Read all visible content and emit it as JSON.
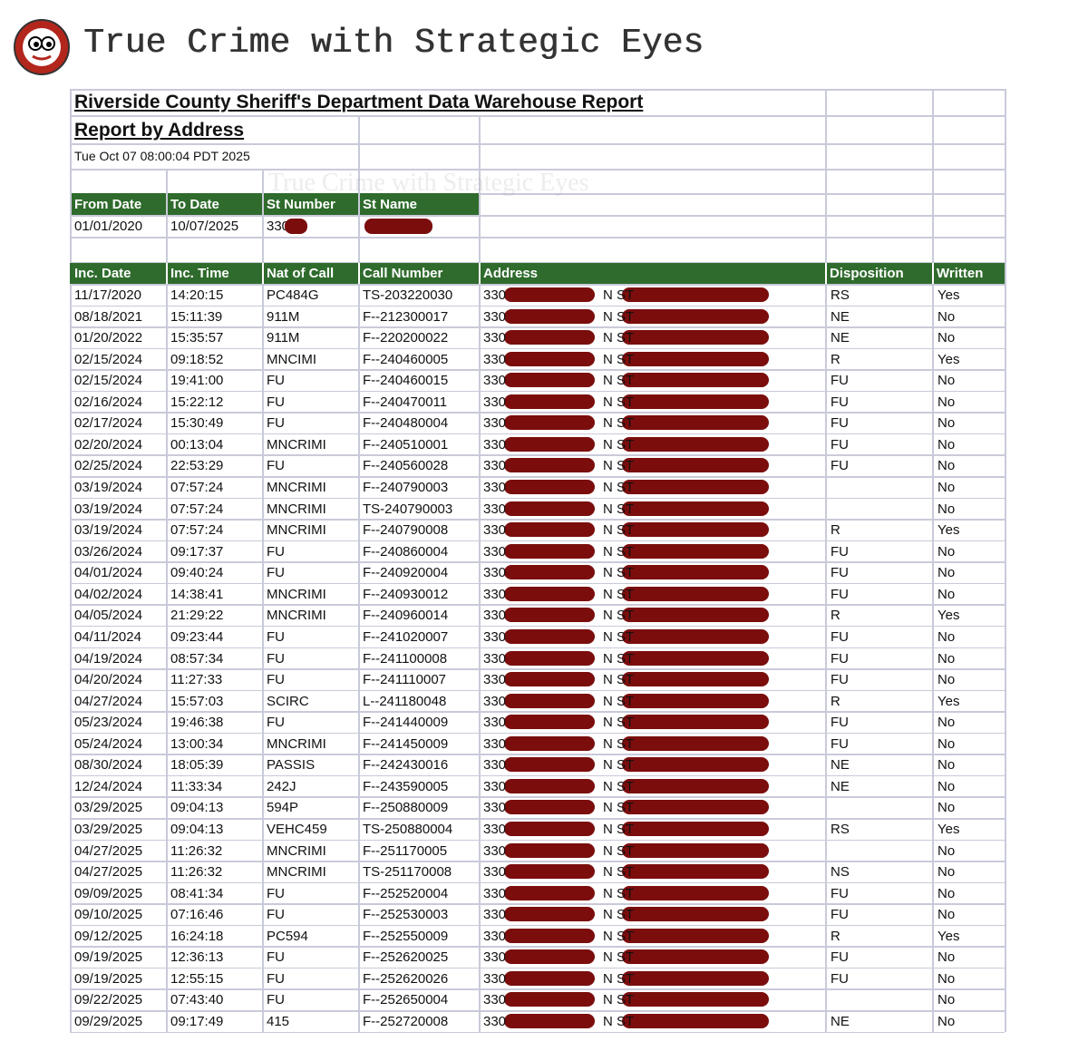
{
  "header": {
    "title": "True Crime with Strategic Eyes"
  },
  "report": {
    "title": "Riverside County Sheriff's Department Data Warehouse Report",
    "subtitle": "Report by Address",
    "generated": "Tue Oct 07 08:00:04 PDT 2025",
    "filter_headers": [
      "From Date",
      "To Date",
      "St Number",
      "St Name"
    ],
    "filter_values": [
      "01/01/2020",
      "10/07/2025",
      "330"
    ],
    "columns": [
      "Inc. Date",
      "Inc. Time",
      "Nat of Call",
      "Call Number",
      "Address",
      "Disposition",
      "Written"
    ],
    "rows": [
      [
        "11/17/2020",
        "14:20:15",
        "PC484G",
        "TS-203220030",
        "330",
        "N ST",
        "RS",
        "Yes"
      ],
      [
        "08/18/2021",
        "15:11:39",
        "911M",
        "F--212300017",
        "330",
        "N ST",
        "NE",
        "No"
      ],
      [
        "01/20/2022",
        "15:35:57",
        "911M",
        "F--220200022",
        "330",
        "N ST",
        "NE",
        "No"
      ],
      [
        "02/15/2024",
        "09:18:52",
        "MNCIMI",
        "F--240460005",
        "330",
        "N ST",
        "R",
        "Yes"
      ],
      [
        "02/15/2024",
        "19:41:00",
        "FU",
        "F--240460015",
        "330",
        "N ST",
        "FU",
        "No"
      ],
      [
        "02/16/2024",
        "15:22:12",
        "FU",
        "F--240470011",
        "330",
        "N ST",
        "FU",
        "No"
      ],
      [
        "02/17/2024",
        "15:30:49",
        "FU",
        "F--240480004",
        "330",
        "N ST",
        "FU",
        "No"
      ],
      [
        "02/20/2024",
        "00:13:04",
        "MNCRIMI",
        "F--240510001",
        "330",
        "N ST",
        "FU",
        "No"
      ],
      [
        "02/25/2024",
        "22:53:29",
        "FU",
        "F--240560028",
        "330",
        "N ST",
        "FU",
        "No"
      ],
      [
        "03/19/2024",
        "07:57:24",
        "MNCRIMI",
        "F--240790003",
        "330",
        "N ST",
        null,
        "No"
      ],
      [
        "03/19/2024",
        "07:57:24",
        "MNCRIMI",
        "TS-240790003",
        "330",
        "N ST",
        null,
        "No"
      ],
      [
        "03/19/2024",
        "07:57:24",
        "MNCRIMI",
        "F--240790008",
        "330",
        "N ST",
        "R",
        "Yes"
      ],
      [
        "03/26/2024",
        "09:17:37",
        "FU",
        "F--240860004",
        "330",
        "N ST",
        "FU",
        "No"
      ],
      [
        "04/01/2024",
        "09:40:24",
        "FU",
        "F--240920004",
        "330",
        "N ST",
        "FU",
        "No"
      ],
      [
        "04/02/2024",
        "14:38:41",
        "MNCRIMI",
        "F--240930012",
        "330",
        "N ST",
        "FU",
        "No"
      ],
      [
        "04/05/2024",
        "21:29:22",
        "MNCRIMI",
        "F--240960014",
        "330",
        "N ST",
        "R",
        "Yes"
      ],
      [
        "04/11/2024",
        "09:23:44",
        "FU",
        "F--241020007",
        "330",
        "N ST",
        "FU",
        "No"
      ],
      [
        "04/19/2024",
        "08:57:34",
        "FU",
        "F--241100008",
        "330",
        "N ST",
        "FU",
        "No"
      ],
      [
        "04/20/2024",
        "11:27:33",
        "FU",
        "F--241110007",
        "330",
        "N ST",
        "FU",
        "No"
      ],
      [
        "04/27/2024",
        "15:57:03",
        "SCIRC",
        "L--241180048",
        "330",
        "N ST",
        "R",
        "Yes"
      ],
      [
        "05/23/2024",
        "19:46:38",
        "FU",
        "F--241440009",
        "330",
        "N ST",
        "FU",
        "No"
      ],
      [
        "05/24/2024",
        "13:00:34",
        "MNCRIMI",
        "F--241450009",
        "330",
        "N ST",
        "FU",
        "No"
      ],
      [
        "08/30/2024",
        "18:05:39",
        "PASSIS",
        "F--242430016",
        "330",
        "N ST",
        "NE",
        "No"
      ],
      [
        "12/24/2024",
        "11:33:34",
        "242J",
        "F--243590005",
        "330",
        "N ST",
        "NE",
        "No"
      ],
      [
        "03/29/2025",
        "09:04:13",
        "594P",
        "F--250880009",
        "330",
        "N ST",
        null,
        "No"
      ],
      [
        "03/29/2025",
        "09:04:13",
        "VEHC459",
        "TS-250880004",
        "330",
        "N ST",
        "RS",
        "Yes"
      ],
      [
        "04/27/2025",
        "11:26:32",
        "MNCRIMI",
        "F--251170005",
        "330",
        "N ST",
        null,
        "No"
      ],
      [
        "04/27/2025",
        "11:26:32",
        "MNCRIMI",
        "TS-251170008",
        "330",
        "N ST",
        "NS",
        "No"
      ],
      [
        "09/09/2025",
        "08:41:34",
        "FU",
        "F--252520004",
        "330",
        "N ST",
        "FU",
        "No"
      ],
      [
        "09/10/2025",
        "07:16:46",
        "FU",
        "F--252530003",
        "330",
        "N ST",
        "FU",
        "No"
      ],
      [
        "09/12/2025",
        "16:24:18",
        "PC594",
        "F--252550009",
        "330",
        "N ST",
        "R",
        "Yes"
      ],
      [
        "09/19/2025",
        "12:36:13",
        "FU",
        "F--252620025",
        "330",
        "N ST",
        "FU",
        "No"
      ],
      [
        "09/19/2025",
        "12:55:15",
        "FU",
        "F--252620026",
        "330",
        "N ST",
        "FU",
        "No"
      ],
      [
        "09/22/2025",
        "07:43:40",
        "FU",
        "F--252650004",
        "330",
        "N ST",
        null,
        "No"
      ],
      [
        "09/29/2025",
        "09:17:49",
        "415",
        "F--252720008",
        "330",
        "N ST",
        "NE",
        "No"
      ]
    ]
  }
}
